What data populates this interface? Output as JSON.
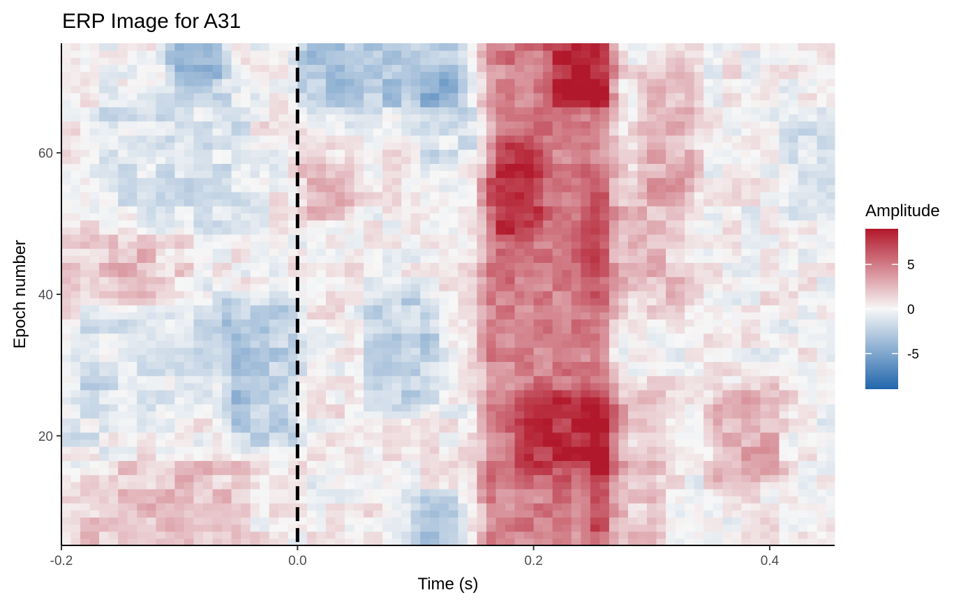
{
  "chart_data": {
    "type": "heatmap",
    "title": "ERP Image for A31",
    "xlabel": "Time (s)",
    "ylabel": "Epoch number",
    "xlim": [
      -0.2,
      0.455
    ],
    "ylim": [
      4.5,
      75.5
    ],
    "x_ticks": [
      -0.2,
      0.0,
      0.2,
      0.4
    ],
    "x_tick_labels": [
      "-0.2",
      "0.0",
      "0.2",
      "0.4"
    ],
    "y_ticks": [
      20,
      40,
      60
    ],
    "y_tick_labels": [
      "20",
      "40",
      "60"
    ],
    "epochs": [
      5,
      75
    ],
    "time_step": 0.008,
    "stimulus_onset_line": 0.0,
    "colorscale": {
      "low": "#2166ac",
      "mid": "#f7f7f7",
      "high": "#b2182b",
      "range": [
        -9,
        9
      ]
    },
    "legend": {
      "title": "Amplitude",
      "placement": "right",
      "ticks": [
        5,
        0,
        -5
      ],
      "tick_labels": [
        "5",
        "0",
        "-5"
      ]
    },
    "regions": [
      {
        "t0": -0.2,
        "t1": 0.455,
        "e0": 5,
        "e1": 75,
        "amp": 0.2
      },
      {
        "t0": -0.18,
        "t1": -0.06,
        "e0": 26,
        "e1": 38,
        "amp": -1.3
      },
      {
        "t0": -0.05,
        "t1": -0.01,
        "e0": 20,
        "e1": 38,
        "amp": -2.6
      },
      {
        "t0": 0.065,
        "t1": 0.11,
        "e0": 26,
        "e1": 38,
        "amp": -2.4
      },
      {
        "t0": -0.16,
        "t1": -0.05,
        "e0": 50,
        "e1": 68,
        "amp": -1.4
      },
      {
        "t0": -0.1,
        "t1": -0.07,
        "e0": 72,
        "e1": 75,
        "amp": -4.8
      },
      {
        "t0": 0.01,
        "t1": 0.13,
        "e0": 68,
        "e1": 75,
        "amp": -3.2
      },
      {
        "t0": 0.1,
        "t1": 0.13,
        "e0": 5,
        "e1": 9,
        "amp": -3.5
      },
      {
        "t0": 0.11,
        "t1": 0.16,
        "e0": 60,
        "e1": 70,
        "amp": -1.5
      },
      {
        "t0": -0.2,
        "t1": -0.17,
        "e0": 15,
        "e1": 25,
        "amp": -1.2
      },
      {
        "t0": 0.42,
        "t1": 0.455,
        "e0": 52,
        "e1": 62,
        "amp": -1.6
      },
      {
        "t0": -0.2,
        "t1": -0.05,
        "e0": 5,
        "e1": 15,
        "amp": 1.8
      },
      {
        "t0": -0.2,
        "t1": -0.13,
        "e0": 40,
        "e1": 48,
        "amp": 1.3
      },
      {
        "t0": -0.15,
        "t1": -0.1,
        "e0": 42,
        "e1": 48,
        "amp": 1.2
      },
      {
        "t0": 0.01,
        "t1": 0.04,
        "e0": 52,
        "e1": 58,
        "amp": 2.0
      },
      {
        "t0": 0.165,
        "t1": 0.255,
        "e0": 5,
        "e1": 75,
        "amp": 4.6
      },
      {
        "t0": 0.175,
        "t1": 0.2,
        "e0": 50,
        "e1": 60,
        "amp": 3.0
      },
      {
        "t0": 0.195,
        "t1": 0.26,
        "e0": 17,
        "e1": 24,
        "amp": 3.2
      },
      {
        "t0": 0.225,
        "t1": 0.26,
        "e0": 68,
        "e1": 75,
        "amp": 3.6
      },
      {
        "t0": 0.25,
        "t1": 0.32,
        "e0": 40,
        "e1": 55,
        "amp": 1.9
      },
      {
        "t0": 0.255,
        "t1": 0.3,
        "e0": 5,
        "e1": 25,
        "amp": 1.8
      },
      {
        "t0": 0.36,
        "t1": 0.4,
        "e0": 15,
        "e1": 25,
        "amp": 2.5
      },
      {
        "t0": 0.3,
        "t1": 0.33,
        "e0": 55,
        "e1": 70,
        "amp": 2.3
      }
    ]
  }
}
